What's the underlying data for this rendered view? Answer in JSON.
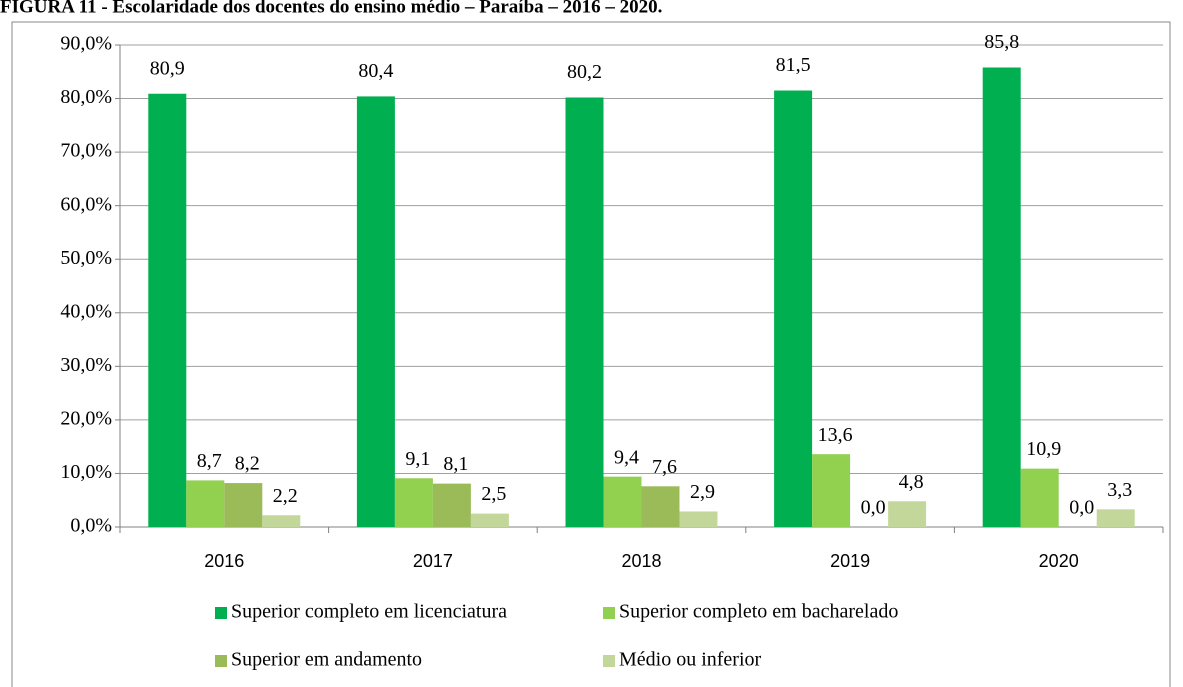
{
  "chart_data": {
    "type": "bar",
    "title": "FIGURA 11 - Escolaridade dos docentes do ensino médio – Paraíba – 2016 – 2020.",
    "categories": [
      "2016",
      "2017",
      "2018",
      "2019",
      "2020"
    ],
    "series": [
      {
        "name": "Superior completo em licenciatura",
        "color": "#00b050",
        "values": [
          80.9,
          80.4,
          80.2,
          81.5,
          85.8
        ],
        "value_labels": [
          "80,9",
          "80,4",
          "80,2",
          "81,5",
          "85,8"
        ]
      },
      {
        "name": "Superior completo em bacharelado",
        "color": "#92d050",
        "values": [
          8.7,
          9.1,
          9.4,
          13.6,
          10.9
        ],
        "value_labels": [
          "8,7",
          "9,1",
          "9,4",
          "13,6",
          "10,9"
        ]
      },
      {
        "name": "Superior em andamento",
        "color": "#9bbb59",
        "values": [
          8.2,
          8.1,
          7.6,
          0.0,
          0.0
        ],
        "value_labels": [
          "8,2",
          "8,1",
          "7,6",
          "0,0",
          "0,0"
        ]
      },
      {
        "name": "Médio ou inferior",
        "color": "#c4d79b",
        "values": [
          2.2,
          2.5,
          2.9,
          4.8,
          3.3
        ],
        "value_labels": [
          "2,2",
          "2,5",
          "2,9",
          "4,8",
          "3,3"
        ]
      }
    ],
    "ylim": [
      0,
      90
    ],
    "yticks": [
      {
        "value": 0,
        "label": "0,0%"
      },
      {
        "value": 10,
        "label": "10,0%"
      },
      {
        "value": 20,
        "label": "20,0%"
      },
      {
        "value": 30,
        "label": "30,0%"
      },
      {
        "value": 40,
        "label": "40,0%"
      },
      {
        "value": 50,
        "label": "50,0%"
      },
      {
        "value": 60,
        "label": "60,0%"
      },
      {
        "value": 70,
        "label": "70,0%"
      },
      {
        "value": 80,
        "label": "80,0%"
      },
      {
        "value": 90,
        "label": "90,0%"
      }
    ],
    "grid": true,
    "legend": "bottom"
  }
}
